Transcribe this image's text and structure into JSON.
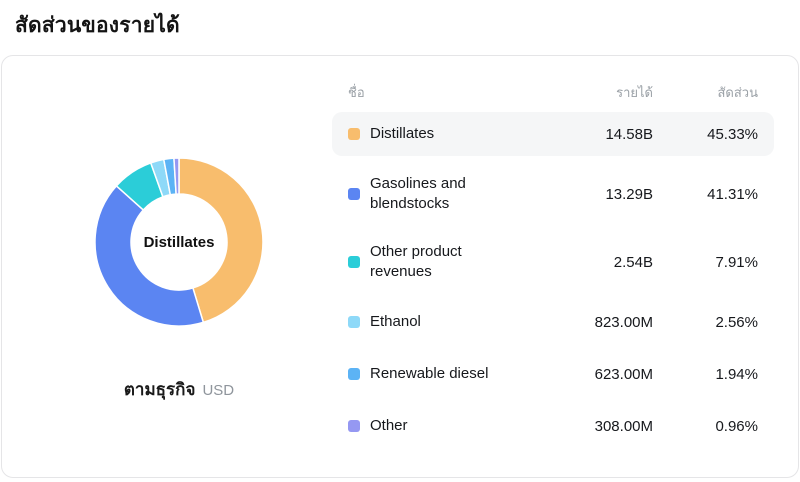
{
  "page_title": "สัดส่วนของรายได้",
  "chart": {
    "center_label": "Distillates",
    "footer_label": "ตามธุรกิจ",
    "footer_unit": "USD"
  },
  "table": {
    "headers": [
      "ชื่อ",
      "รายได้",
      "สัดส่วน"
    ],
    "rows": [
      {
        "name": "Distillates",
        "revenue": "14.58B",
        "share": "45.33%"
      },
      {
        "name": "Gasolines and blendstocks",
        "revenue": "13.29B",
        "share": "41.31%"
      },
      {
        "name": "Other product revenues",
        "revenue": "2.54B",
        "share": "7.91%"
      },
      {
        "name": "Ethanol",
        "revenue": "823.00M",
        "share": "2.56%"
      },
      {
        "name": "Renewable diesel",
        "revenue": "623.00M",
        "share": "1.94%"
      },
      {
        "name": "Other",
        "revenue": "308.00M",
        "share": "0.96%"
      }
    ]
  },
  "chart_data": {
    "type": "pie",
    "donut": true,
    "title": "สัดส่วนของรายได้",
    "subtitle": "ตามธุรกิจ",
    "unit": "USD",
    "center_label": "Distillates",
    "legend_position": "right",
    "categories": [
      "Distillates",
      "Gasolines and blendstocks",
      "Other product revenues",
      "Ethanol",
      "Renewable diesel",
      "Other"
    ],
    "values": [
      45.33,
      41.31,
      7.91,
      2.56,
      1.94,
      0.96
    ],
    "revenues": [
      "14.58B",
      "13.29B",
      "2.54B",
      "823.00M",
      "623.00M",
      "308.00M"
    ],
    "colors": [
      "#f8bd6d",
      "#5b85f2",
      "#2bcdd8",
      "#8ed9f8",
      "#5cb3f5",
      "#9598f2"
    ]
  }
}
